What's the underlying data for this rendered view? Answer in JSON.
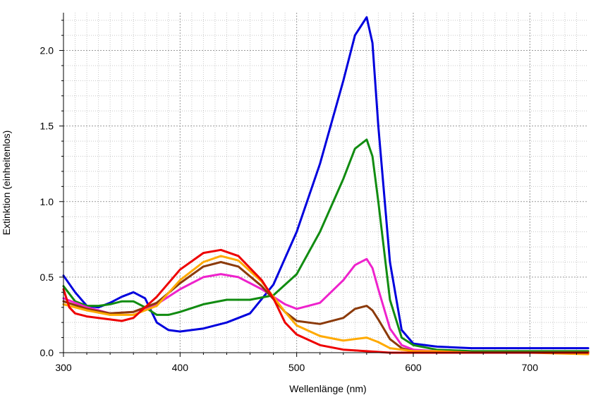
{
  "chart_data": {
    "type": "line",
    "title": "",
    "xlabel": "Wellenlänge (nm)",
    "ylabel": "Extinktion (einheitenlos)",
    "xlim": [
      300,
      750
    ],
    "ylim": [
      0,
      2.25
    ],
    "x_ticks": [
      300,
      400,
      500,
      600,
      700
    ],
    "y_ticks": [
      0.0,
      0.5,
      1.0,
      1.5,
      2.0
    ],
    "x_tick_labels": [
      "300",
      "400",
      "500",
      "600",
      "700"
    ],
    "y_tick_labels": [
      "0.0",
      "0.5",
      "1.0",
      "1.5",
      "2.0"
    ],
    "grid": true,
    "legend": "none",
    "series": [
      {
        "color": "#0000dd",
        "x": [
          300,
          310,
          320,
          330,
          340,
          350,
          360,
          370,
          380,
          390,
          400,
          420,
          440,
          460,
          480,
          500,
          520,
          540,
          550,
          560,
          565,
          570,
          580,
          590,
          600,
          620,
          650,
          700,
          750
        ],
        "y": [
          0.51,
          0.4,
          0.31,
          0.3,
          0.33,
          0.37,
          0.4,
          0.36,
          0.2,
          0.15,
          0.14,
          0.16,
          0.2,
          0.26,
          0.45,
          0.8,
          1.25,
          1.8,
          2.1,
          2.22,
          2.05,
          1.5,
          0.6,
          0.15,
          0.06,
          0.04,
          0.03,
          0.03,
          0.03
        ]
      },
      {
        "color": "#118c11",
        "x": [
          300,
          310,
          320,
          330,
          340,
          350,
          360,
          370,
          380,
          390,
          400,
          420,
          440,
          460,
          480,
          500,
          520,
          540,
          550,
          560,
          565,
          570,
          580,
          590,
          600,
          620,
          650,
          700,
          750
        ],
        "y": [
          0.44,
          0.34,
          0.31,
          0.31,
          0.32,
          0.34,
          0.34,
          0.3,
          0.25,
          0.25,
          0.27,
          0.32,
          0.35,
          0.35,
          0.38,
          0.52,
          0.8,
          1.15,
          1.35,
          1.41,
          1.3,
          1.0,
          0.35,
          0.1,
          0.05,
          0.02,
          0.01,
          0.01,
          0.01
        ]
      },
      {
        "color": "#ee22cc",
        "x": [
          300,
          320,
          340,
          360,
          380,
          400,
          420,
          435,
          450,
          470,
          490,
          500,
          520,
          540,
          550,
          560,
          565,
          570,
          580,
          590,
          600,
          620,
          650,
          700,
          750
        ],
        "y": [
          0.36,
          0.3,
          0.26,
          0.27,
          0.32,
          0.42,
          0.5,
          0.52,
          0.5,
          0.42,
          0.32,
          0.29,
          0.33,
          0.48,
          0.58,
          0.62,
          0.56,
          0.42,
          0.16,
          0.05,
          0.02,
          0.01,
          0.0,
          0.0,
          0.0
        ]
      },
      {
        "color": "#8b3a0a",
        "x": [
          300,
          320,
          340,
          360,
          380,
          400,
          420,
          435,
          450,
          470,
          490,
          500,
          520,
          540,
          550,
          560,
          565,
          570,
          580,
          590,
          600,
          620,
          650,
          700,
          750
        ],
        "y": [
          0.34,
          0.29,
          0.26,
          0.27,
          0.33,
          0.46,
          0.57,
          0.6,
          0.57,
          0.44,
          0.27,
          0.21,
          0.19,
          0.23,
          0.29,
          0.31,
          0.28,
          0.22,
          0.09,
          0.03,
          0.01,
          0.0,
          0.0,
          0.0,
          0.0
        ]
      },
      {
        "color": "#ffaa00",
        "x": [
          300,
          320,
          340,
          360,
          380,
          400,
          420,
          435,
          450,
          470,
          490,
          500,
          520,
          540,
          550,
          560,
          570,
          580,
          600,
          620,
          650,
          700,
          750
        ],
        "y": [
          0.32,
          0.28,
          0.25,
          0.25,
          0.31,
          0.48,
          0.6,
          0.64,
          0.61,
          0.47,
          0.27,
          0.18,
          0.11,
          0.08,
          0.09,
          0.1,
          0.07,
          0.03,
          0.01,
          0.01,
          0.0,
          0.0,
          -0.01
        ]
      },
      {
        "color": "#ee0000",
        "x": [
          300,
          305,
          310,
          320,
          330,
          340,
          350,
          360,
          370,
          380,
          400,
          420,
          435,
          450,
          470,
          480,
          490,
          500,
          520,
          540,
          560,
          580,
          600,
          650,
          700,
          750
        ],
        "y": [
          0.42,
          0.3,
          0.26,
          0.24,
          0.23,
          0.22,
          0.21,
          0.23,
          0.3,
          0.37,
          0.55,
          0.66,
          0.68,
          0.64,
          0.48,
          0.36,
          0.2,
          0.12,
          0.05,
          0.02,
          0.01,
          0.0,
          0.0,
          0.0,
          0.0,
          0.0
        ]
      }
    ]
  }
}
